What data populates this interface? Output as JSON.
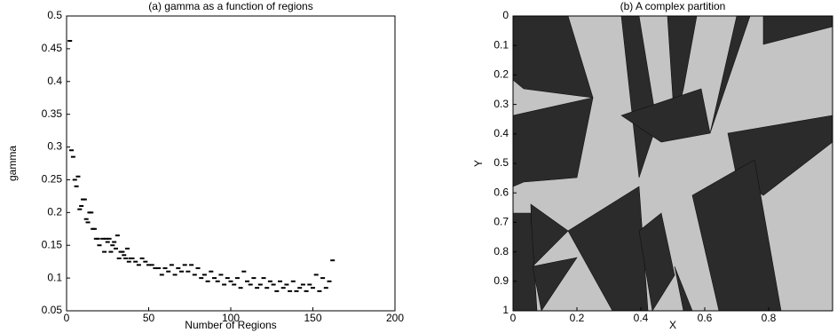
{
  "chart_data": [
    {
      "type": "scatter",
      "title": "(a) gamma as a function of regions",
      "xlabel": "Number of Regions",
      "ylabel": "gamma",
      "color": "#000000",
      "x": [
        2,
        3,
        4,
        5,
        6,
        7,
        8,
        9,
        10,
        11,
        12,
        13,
        14,
        15,
        16,
        17,
        18,
        19,
        20,
        22,
        23,
        24,
        25,
        26,
        27,
        28,
        29,
        30,
        31,
        32,
        33,
        34,
        35,
        36,
        37,
        38,
        39,
        40,
        42,
        44,
        46,
        48,
        50,
        52,
        54,
        56,
        58,
        60,
        62,
        64,
        66,
        68,
        70,
        72,
        74,
        76,
        78,
        80,
        82,
        84,
        86,
        88,
        90,
        92,
        94,
        96,
        98,
        100,
        102,
        104,
        106,
        108,
        110,
        112,
        114,
        116,
        118,
        120,
        122,
        124,
        126,
        128,
        130,
        132,
        134,
        136,
        138,
        140,
        142,
        144,
        146,
        148,
        150,
        152,
        154,
        156,
        158,
        160,
        162
      ],
      "values": [
        0.462,
        0.295,
        0.285,
        0.25,
        0.24,
        0.255,
        0.205,
        0.21,
        0.22,
        0.22,
        0.19,
        0.185,
        0.2,
        0.2,
        0.175,
        0.175,
        0.16,
        0.16,
        0.15,
        0.16,
        0.14,
        0.16,
        0.155,
        0.16,
        0.14,
        0.15,
        0.155,
        0.145,
        0.165,
        0.13,
        0.14,
        0.14,
        0.135,
        0.13,
        0.145,
        0.125,
        0.13,
        0.13,
        0.125,
        0.12,
        0.13,
        0.125,
        0.12,
        0.12,
        0.115,
        0.115,
        0.105,
        0.115,
        0.11,
        0.12,
        0.105,
        0.115,
        0.11,
        0.12,
        0.11,
        0.12,
        0.105,
        0.115,
        0.1,
        0.105,
        0.095,
        0.11,
        0.1,
        0.095,
        0.105,
        0.09,
        0.1,
        0.095,
        0.09,
        0.1,
        0.085,
        0.11,
        0.095,
        0.09,
        0.1,
        0.085,
        0.09,
        0.1,
        0.085,
        0.095,
        0.09,
        0.08,
        0.095,
        0.085,
        0.09,
        0.08,
        0.095,
        0.08,
        0.085,
        0.09,
        0.08,
        0.09,
        0.085,
        0.105,
        0.08,
        0.1,
        0.085,
        0.095,
        0.127
      ],
      "xlim": [
        0,
        200
      ],
      "xticks": [
        0,
        50,
        100,
        150,
        200
      ],
      "ylim": [
        0.05,
        0.5
      ],
      "yticks": [
        0.05,
        0.1,
        0.15,
        0.2,
        0.25,
        0.3,
        0.35,
        0.4,
        0.45,
        0.5
      ]
    },
    {
      "type": "image",
      "title": "(b) A complex partition",
      "xlabel": "X",
      "ylabel": "Y",
      "xlim": [
        0,
        1
      ],
      "xticks": [
        0,
        0.2,
        0.4,
        0.6,
        0.8
      ],
      "ylim": [
        1,
        0
      ],
      "yticks": [
        0,
        0.1,
        0.2,
        0.3,
        0.4,
        0.5,
        0.6,
        0.7,
        0.8,
        0.9,
        1
      ]
    }
  ]
}
